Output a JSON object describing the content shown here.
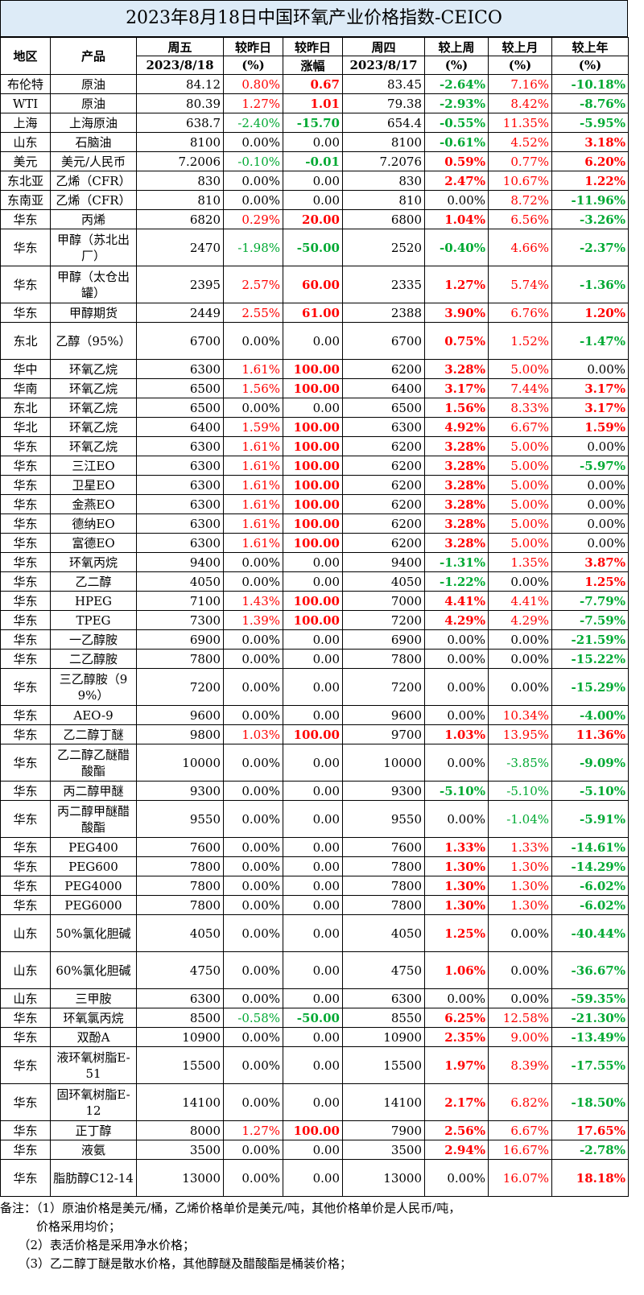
{
  "title": "2023年8月18日中国环氧产业价格指数-CEICO",
  "header": {
    "region": "地区",
    "product": "产品",
    "fri": "周五",
    "fri_date": "2023/8/18",
    "chg_pct": "较昨日",
    "chg_pct_unit": "(%)",
    "chg_abs": "较昨日",
    "chg_abs_unit": "涨幅",
    "thu": "周四",
    "thu_date": "2023/8/17",
    "wk": "较上周",
    "wk_unit": "(%)",
    "mo": "较上月",
    "mo_unit": "(%)",
    "yr": "较上年",
    "yr_unit": "(%)"
  },
  "rows": [
    {
      "region": "布伦特",
      "product": "原油",
      "fri": "84.12",
      "dpct": "0.80%",
      "dabs": "0.67",
      "thu": "83.45",
      "wk": "-2.64%",
      "mo": "7.16%",
      "yr": "-10.18%"
    },
    {
      "region": "WTI",
      "product": "原油",
      "fri": "80.39",
      "dpct": "1.27%",
      "dabs": "1.01",
      "thu": "79.38",
      "wk": "-2.93%",
      "mo": "8.42%",
      "yr": "-8.76%"
    },
    {
      "region": "上海",
      "product": "上海原油",
      "fri": "638.7",
      "dpct": "-2.40%",
      "dabs": "-15.70",
      "thu": "654.4",
      "wk": "-0.55%",
      "mo": "11.35%",
      "yr": "-5.95%"
    },
    {
      "region": "山东",
      "product": "石脑油",
      "fri": "8100",
      "dpct": "0.00%",
      "dabs": "0.00",
      "thu": "8100",
      "wk": "-0.61%",
      "mo": "4.52%",
      "yr": "3.18%"
    },
    {
      "region": "美元",
      "product": "美元/人民币",
      "fri": "7.2006",
      "dpct": "-0.10%",
      "dabs": "-0.01",
      "thu": "7.2076",
      "wk": "0.59%",
      "mo": "0.77%",
      "yr": "6.20%"
    },
    {
      "region": "东北亚",
      "product": "乙烯（CFR）",
      "fri": "830",
      "dpct": "0.00%",
      "dabs": "0.00",
      "thu": "830",
      "wk": "2.47%",
      "mo": "10.67%",
      "yr": "1.22%"
    },
    {
      "region": "东南亚",
      "product": "乙烯（CFR）",
      "fri": "810",
      "dpct": "0.00%",
      "dabs": "0.00",
      "thu": "810",
      "wk": "0.00%",
      "mo": "8.72%",
      "yr": "-11.96%"
    },
    {
      "region": "华东",
      "product": "丙烯",
      "fri": "6820",
      "dpct": "0.29%",
      "dabs": "20.00",
      "thu": "6800",
      "wk": "1.04%",
      "mo": "6.56%",
      "yr": "-3.26%"
    },
    {
      "region": "华东",
      "product": "甲醇（苏北出厂）",
      "fri": "2470",
      "dpct": "-1.98%",
      "dabs": "-50.00",
      "thu": "2520",
      "wk": "-0.40%",
      "mo": "4.66%",
      "yr": "-2.37%",
      "tall": true
    },
    {
      "region": "华东",
      "product": "甲醇（太仓出罐）",
      "fri": "2395",
      "dpct": "2.57%",
      "dabs": "60.00",
      "thu": "2335",
      "wk": "1.27%",
      "mo": "5.74%",
      "yr": "-1.36%",
      "tall": true
    },
    {
      "region": "华东",
      "product": "甲醇期货",
      "fri": "2449",
      "dpct": "2.55%",
      "dabs": "61.00",
      "thu": "2388",
      "wk": "3.90%",
      "mo": "6.76%",
      "yr": "1.20%"
    },
    {
      "region": "东北",
      "product": "乙醇（95%）",
      "fri": "6700",
      "dpct": "0.00%",
      "dabs": "0.00",
      "thu": "6700",
      "wk": "0.75%",
      "mo": "1.52%",
      "yr": "-1.47%",
      "tall": true
    },
    {
      "region": "华中",
      "product": "环氧乙烷",
      "fri": "6300",
      "dpct": "1.61%",
      "dabs": "100.00",
      "thu": "6200",
      "wk": "3.28%",
      "mo": "5.00%",
      "yr": "0.00%"
    },
    {
      "region": "华南",
      "product": "环氧乙烷",
      "fri": "6500",
      "dpct": "1.56%",
      "dabs": "100.00",
      "thu": "6400",
      "wk": "3.17%",
      "mo": "7.44%",
      "yr": "3.17%"
    },
    {
      "region": "东北",
      "product": "环氧乙烷",
      "fri": "6500",
      "dpct": "0.00%",
      "dabs": "0.00",
      "thu": "6500",
      "wk": "1.56%",
      "mo": "8.33%",
      "yr": "3.17%"
    },
    {
      "region": "华北",
      "product": "环氧乙烷",
      "fri": "6400",
      "dpct": "1.59%",
      "dabs": "100.00",
      "thu": "6300",
      "wk": "4.92%",
      "mo": "6.67%",
      "yr": "1.59%"
    },
    {
      "region": "华东",
      "product": "环氧乙烷",
      "fri": "6300",
      "dpct": "1.61%",
      "dabs": "100.00",
      "thu": "6200",
      "wk": "3.28%",
      "mo": "5.00%",
      "yr": "0.00%"
    },
    {
      "region": "华东",
      "product": "三江EO",
      "fri": "6300",
      "dpct": "1.61%",
      "dabs": "100.00",
      "thu": "6200",
      "wk": "3.28%",
      "mo": "5.00%",
      "yr": "-5.97%"
    },
    {
      "region": "华东",
      "product": "卫星EO",
      "fri": "6300",
      "dpct": "1.61%",
      "dabs": "100.00",
      "thu": "6200",
      "wk": "3.28%",
      "mo": "5.00%",
      "yr": "0.00%"
    },
    {
      "region": "华东",
      "product": "金燕EO",
      "fri": "6300",
      "dpct": "1.61%",
      "dabs": "100.00",
      "thu": "6200",
      "wk": "3.28%",
      "mo": "5.00%",
      "yr": "0.00%"
    },
    {
      "region": "华东",
      "product": "德纳EO",
      "fri": "6300",
      "dpct": "1.61%",
      "dabs": "100.00",
      "thu": "6200",
      "wk": "3.28%",
      "mo": "5.00%",
      "yr": "0.00%"
    },
    {
      "region": "华东",
      "product": "富德EO",
      "fri": "6300",
      "dpct": "1.61%",
      "dabs": "100.00",
      "thu": "6200",
      "wk": "3.28%",
      "mo": "5.00%",
      "yr": "0.00%"
    },
    {
      "region": "华东",
      "product": "环氧丙烷",
      "fri": "9400",
      "dpct": "0.00%",
      "dabs": "0.00",
      "thu": "9400",
      "wk": "-1.31%",
      "mo": "1.35%",
      "yr": "3.87%"
    },
    {
      "region": "华东",
      "product": "乙二醇",
      "fri": "4050",
      "dpct": "0.00%",
      "dabs": "0.00",
      "thu": "4050",
      "wk": "-1.22%",
      "mo": "0.00%",
      "yr": "1.25%"
    },
    {
      "region": "华东",
      "product": "HPEG",
      "fri": "7100",
      "dpct": "1.43%",
      "dabs": "100.00",
      "thu": "7000",
      "wk": "4.41%",
      "mo": "4.41%",
      "yr": "-7.79%"
    },
    {
      "region": "华东",
      "product": "TPEG",
      "fri": "7300",
      "dpct": "1.39%",
      "dabs": "100.00",
      "thu": "7200",
      "wk": "4.29%",
      "mo": "4.29%",
      "yr": "-7.59%"
    },
    {
      "region": "华东",
      "product": "一乙醇胺",
      "fri": "6900",
      "dpct": "0.00%",
      "dabs": "0.00",
      "thu": "6900",
      "wk": "0.00%",
      "mo": "0.00%",
      "yr": "-21.59%"
    },
    {
      "region": "华东",
      "product": "二乙醇胺",
      "fri": "7800",
      "dpct": "0.00%",
      "dabs": "0.00",
      "thu": "7800",
      "wk": "0.00%",
      "mo": "0.00%",
      "yr": "-15.22%"
    },
    {
      "region": "华东",
      "product": "三乙醇胺（99%）",
      "fri": "7200",
      "dpct": "0.00%",
      "dabs": "0.00",
      "thu": "7200",
      "wk": "0.00%",
      "mo": "0.00%",
      "yr": "-15.29%",
      "tall": true
    },
    {
      "region": "华东",
      "product": "AEO-9",
      "fri": "9600",
      "dpct": "0.00%",
      "dabs": "0.00",
      "thu": "9600",
      "wk": "0.00%",
      "mo": "10.34%",
      "yr": "-4.00%"
    },
    {
      "region": "华东",
      "product": "乙二醇丁醚",
      "fri": "9800",
      "dpct": "1.03%",
      "dabs": "100.00",
      "thu": "9700",
      "wk": "1.03%",
      "mo": "13.95%",
      "yr": "11.36%"
    },
    {
      "region": "华东",
      "product": "乙二醇乙醚醋酸酯",
      "fri": "10000",
      "dpct": "0.00%",
      "dabs": "0.00",
      "thu": "10000",
      "wk": "0.00%",
      "mo": "-3.85%",
      "yr": "-9.09%",
      "tall": true
    },
    {
      "region": "华东",
      "product": "丙二醇甲醚",
      "fri": "9300",
      "dpct": "0.00%",
      "dabs": "0.00",
      "thu": "9300",
      "wk": "-5.10%",
      "mo": "-5.10%",
      "yr": "-5.10%"
    },
    {
      "region": "华东",
      "product": "丙二醇甲醚醋酸酯",
      "fri": "9550",
      "dpct": "0.00%",
      "dabs": "0.00",
      "thu": "9550",
      "wk": "0.00%",
      "mo": "-1.04%",
      "yr": "-5.91%",
      "tall": true
    },
    {
      "region": "华东",
      "product": "PEG400",
      "fri": "7600",
      "dpct": "0.00%",
      "dabs": "0.00",
      "thu": "7600",
      "wk": "1.33%",
      "mo": "1.33%",
      "yr": "-14.61%"
    },
    {
      "region": "华东",
      "product": "PEG600",
      "fri": "7800",
      "dpct": "0.00%",
      "dabs": "0.00",
      "thu": "7800",
      "wk": "1.30%",
      "mo": "1.30%",
      "yr": "-14.29%"
    },
    {
      "region": "华东",
      "product": "PEG4000",
      "fri": "7800",
      "dpct": "0.00%",
      "dabs": "0.00",
      "thu": "7800",
      "wk": "1.30%",
      "mo": "1.30%",
      "yr": "-6.02%"
    },
    {
      "region": "华东",
      "product": "PEG6000",
      "fri": "7800",
      "dpct": "0.00%",
      "dabs": "0.00",
      "thu": "7800",
      "wk": "1.30%",
      "mo": "1.30%",
      "yr": "-6.02%"
    },
    {
      "region": "山东",
      "product": "50%氯化胆碱",
      "fri": "4050",
      "dpct": "0.00%",
      "dabs": "0.00",
      "thu": "4050",
      "wk": "1.25%",
      "mo": "0.00%",
      "yr": "-40.44%",
      "tall": true
    },
    {
      "region": "山东",
      "product": "60%氯化胆碱",
      "fri": "4750",
      "dpct": "0.00%",
      "dabs": "0.00",
      "thu": "4750",
      "wk": "1.06%",
      "mo": "0.00%",
      "yr": "-36.67%",
      "tall": true
    },
    {
      "region": "山东",
      "product": "三甲胺",
      "fri": "6300",
      "dpct": "0.00%",
      "dabs": "0.00",
      "thu": "6300",
      "wk": "0.00%",
      "mo": "0.00%",
      "yr": "-59.35%"
    },
    {
      "region": "华东",
      "product": "环氧氯丙烷",
      "fri": "8500",
      "dpct": "-0.58%",
      "dabs": "-50.00",
      "thu": "8550",
      "wk": "6.25%",
      "mo": "12.58%",
      "yr": "-21.30%"
    },
    {
      "region": "华东",
      "product": "双酚A",
      "fri": "10900",
      "dpct": "0.00%",
      "dabs": "0.00",
      "thu": "10900",
      "wk": "2.35%",
      "mo": "9.00%",
      "yr": "-13.49%"
    },
    {
      "region": "华东",
      "product": "液环氧树脂E-51",
      "fri": "15500",
      "dpct": "0.00%",
      "dabs": "0.00",
      "thu": "15500",
      "wk": "1.97%",
      "mo": "8.39%",
      "yr": "-17.55%",
      "tall": true
    },
    {
      "region": "华东",
      "product": "固环氧树脂E-12",
      "fri": "14100",
      "dpct": "0.00%",
      "dabs": "0.00",
      "thu": "14100",
      "wk": "2.17%",
      "mo": "6.82%",
      "yr": "-18.50%",
      "tall": true
    },
    {
      "region": "华东",
      "product": "正丁醇",
      "fri": "8000",
      "dpct": "1.27%",
      "dabs": "100.00",
      "thu": "7900",
      "wk": "2.56%",
      "mo": "6.67%",
      "yr": "17.65%"
    },
    {
      "region": "华东",
      "product": "液氨",
      "fri": "3500",
      "dpct": "0.00%",
      "dabs": "0.00",
      "thu": "3500",
      "wk": "2.94%",
      "mo": "16.67%",
      "yr": "-2.78%"
    },
    {
      "region": "华东",
      "product": "脂肪醇C12-14",
      "fri": "13000",
      "dpct": "0.00%",
      "dabs": "0.00",
      "thu": "13000",
      "wk": "0.00%",
      "mo": "16.07%",
      "yr": "18.18%",
      "tall": true
    }
  ],
  "notes": [
    "备注：（1）原油价格是美元/桶，乙烯价格单价是美元/吨，其他价格单价是人民币/吨，",
    "　　　价格采用均价；",
    "　　（2）表活价格是采用净水价格；",
    "　　（3）乙二醇丁醚是散水价格，其他醇醚及醋酸酯是桶装价格；"
  ],
  "colors": {
    "up": "#ff0000",
    "down": "#00a933",
    "title_bg": "#ddebf7"
  }
}
